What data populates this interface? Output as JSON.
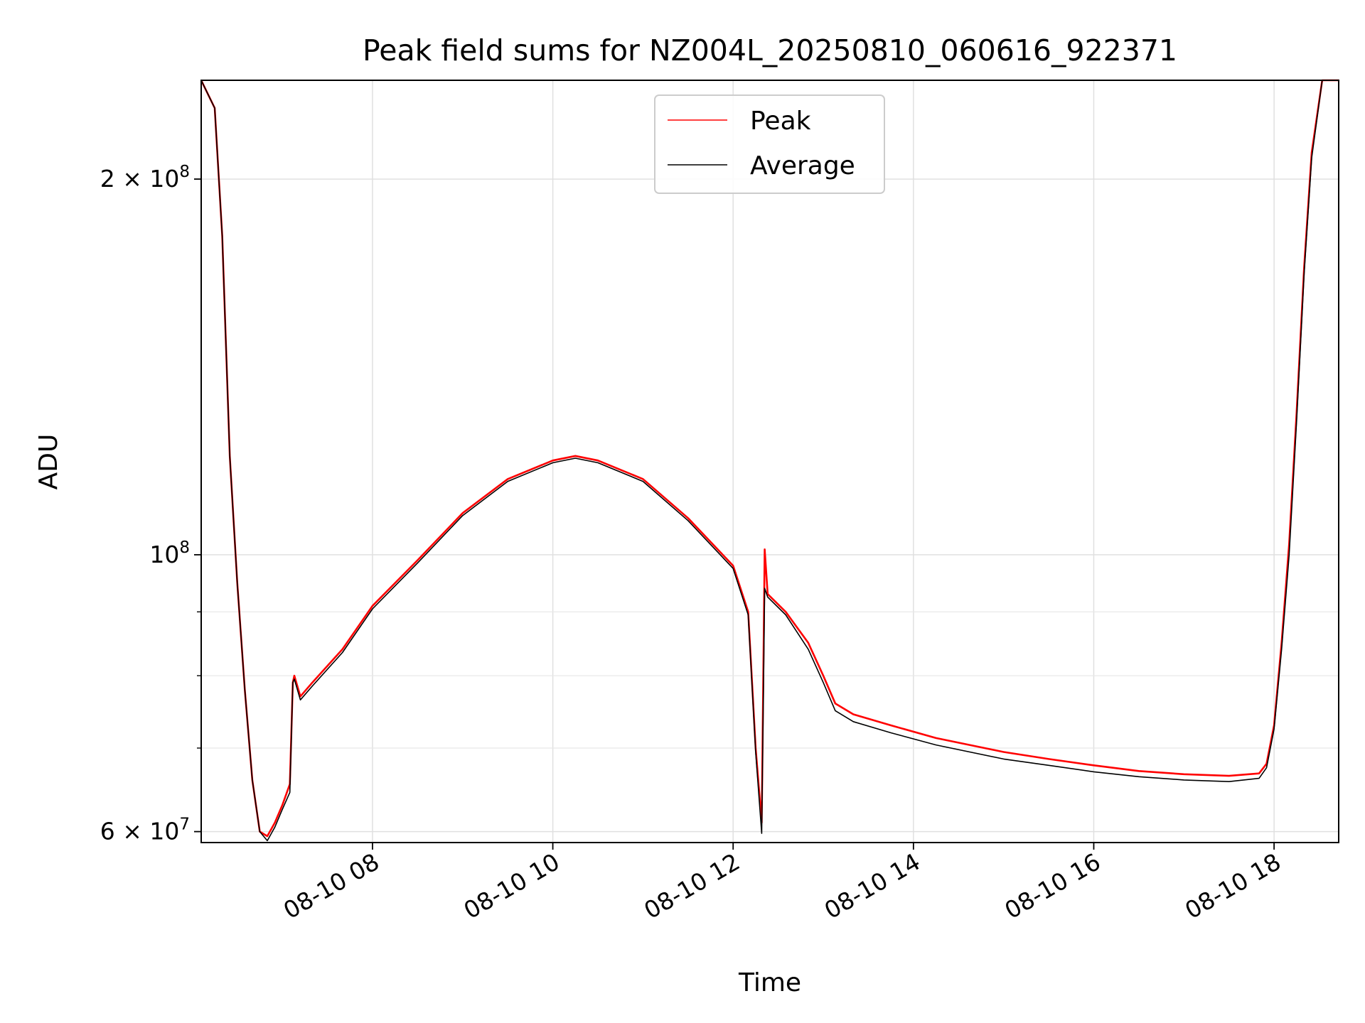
{
  "chart_data": {
    "type": "line",
    "title": "Peak field sums for NZ004L_20250810_060616_922371",
    "xlabel": "Time",
    "ylabel": "ADU",
    "yscale": "log",
    "xlim": [
      "2025-08-10 06:06",
      "2025-08-10 18:43"
    ],
    "ylim": [
      58800000,
      240000000
    ],
    "grid": true,
    "legend_position": "upper center",
    "x_ticks": [
      "08-10 08",
      "08-10 10",
      "08-10 12",
      "08-10 14",
      "08-10 16",
      "08-10 18"
    ],
    "x_tick_times": [
      "2025-08-10 08:00",
      "2025-08-10 10:00",
      "2025-08-10 12:00",
      "2025-08-10 14:00",
      "2025-08-10 16:00",
      "2025-08-10 18:00"
    ],
    "y_ticks": [
      {
        "value": 60000000,
        "mant": "6",
        "exp": "7",
        "text": "6 × 10^7"
      },
      {
        "value": 100000000,
        "mant": "",
        "exp": "8",
        "text": "10^8"
      },
      {
        "value": 200000000,
        "mant": "2",
        "exp": "8",
        "text": "2 × 10^8"
      }
    ],
    "y_minor_ticks": [
      70000000,
      80000000,
      90000000
    ],
    "series": [
      {
        "name": "Peak",
        "color": "#ff0000",
        "points": [
          [
            "2025-08-10 06:06",
            240000000
          ],
          [
            "2025-08-10 06:15",
            228000000
          ],
          [
            "2025-08-10 06:20",
            180000000
          ],
          [
            "2025-08-10 06:25",
            120000000
          ],
          [
            "2025-08-10 06:30",
            95000000
          ],
          [
            "2025-08-10 06:35",
            78000000
          ],
          [
            "2025-08-10 06:40",
            66000000
          ],
          [
            "2025-08-10 06:45",
            60000000
          ],
          [
            "2025-08-10 06:50",
            59500000
          ],
          [
            "2025-08-10 06:55",
            61000000
          ],
          [
            "2025-08-10 07:00",
            63000000
          ],
          [
            "2025-08-10 07:05",
            65500000
          ],
          [
            "2025-08-10 07:07",
            79000000
          ],
          [
            "2025-08-10 07:08",
            80000000
          ],
          [
            "2025-08-10 07:12",
            77000000
          ],
          [
            "2025-08-10 07:20",
            79000000
          ],
          [
            "2025-08-10 07:40",
            84000000
          ],
          [
            "2025-08-10 08:00",
            91000000
          ],
          [
            "2025-08-10 08:30",
            99000000
          ],
          [
            "2025-08-10 09:00",
            108000000
          ],
          [
            "2025-08-10 09:30",
            115000000
          ],
          [
            "2025-08-10 10:00",
            119000000
          ],
          [
            "2025-08-10 10:15",
            120000000
          ],
          [
            "2025-08-10 10:30",
            119000000
          ],
          [
            "2025-08-10 11:00",
            115000000
          ],
          [
            "2025-08-10 11:30",
            107000000
          ],
          [
            "2025-08-10 12:00",
            98000000
          ],
          [
            "2025-08-10 12:10",
            90000000
          ],
          [
            "2025-08-10 12:15",
            70000000
          ],
          [
            "2025-08-10 12:19",
            61000000
          ],
          [
            "2025-08-10 12:21",
            101000000
          ],
          [
            "2025-08-10 12:23",
            93000000
          ],
          [
            "2025-08-10 12:35",
            90000000
          ],
          [
            "2025-08-10 12:50",
            85000000
          ],
          [
            "2025-08-10 13:00",
            80000000
          ],
          [
            "2025-08-10 13:08",
            76000000
          ],
          [
            "2025-08-10 13:20",
            74500000
          ],
          [
            "2025-08-10 13:45",
            73000000
          ],
          [
            "2025-08-10 14:15",
            71300000
          ],
          [
            "2025-08-10 15:00",
            69500000
          ],
          [
            "2025-08-10 15:30",
            68600000
          ],
          [
            "2025-08-10 16:00",
            67800000
          ],
          [
            "2025-08-10 16:30",
            67100000
          ],
          [
            "2025-08-10 17:00",
            66700000
          ],
          [
            "2025-08-10 17:30",
            66500000
          ],
          [
            "2025-08-10 17:50",
            66800000
          ],
          [
            "2025-08-10 17:55",
            68000000
          ],
          [
            "2025-08-10 18:00",
            73000000
          ],
          [
            "2025-08-10 18:05",
            85000000
          ],
          [
            "2025-08-10 18:10",
            102000000
          ],
          [
            "2025-08-10 18:15",
            130000000
          ],
          [
            "2025-08-10 18:20",
            170000000
          ],
          [
            "2025-08-10 18:25",
            210000000
          ],
          [
            "2025-08-10 18:32",
            240000000
          ],
          [
            "2025-08-10 18:43",
            240000000
          ]
        ]
      },
      {
        "name": "Average",
        "color": "#000000",
        "points": [
          [
            "2025-08-10 06:06",
            240000000
          ],
          [
            "2025-08-10 06:15",
            228000000
          ],
          [
            "2025-08-10 06:20",
            180000000
          ],
          [
            "2025-08-10 06:25",
            120000000
          ],
          [
            "2025-08-10 06:30",
            95000000
          ],
          [
            "2025-08-10 06:35",
            78000000
          ],
          [
            "2025-08-10 06:40",
            66000000
          ],
          [
            "2025-08-10 06:45",
            60000000
          ],
          [
            "2025-08-10 06:50",
            59000000
          ],
          [
            "2025-08-10 06:55",
            60500000
          ],
          [
            "2025-08-10 07:00",
            62500000
          ],
          [
            "2025-08-10 07:05",
            64500000
          ],
          [
            "2025-08-10 07:07",
            79000000
          ],
          [
            "2025-08-10 07:08",
            79500000
          ],
          [
            "2025-08-10 07:12",
            76500000
          ],
          [
            "2025-08-10 07:20",
            78500000
          ],
          [
            "2025-08-10 07:40",
            83500000
          ],
          [
            "2025-08-10 08:00",
            90500000
          ],
          [
            "2025-08-10 08:30",
            98500000
          ],
          [
            "2025-08-10 09:00",
            107500000
          ],
          [
            "2025-08-10 09:30",
            114500000
          ],
          [
            "2025-08-10 10:00",
            118500000
          ],
          [
            "2025-08-10 10:15",
            119500000
          ],
          [
            "2025-08-10 10:30",
            118500000
          ],
          [
            "2025-08-10 11:00",
            114500000
          ],
          [
            "2025-08-10 11:30",
            106500000
          ],
          [
            "2025-08-10 12:00",
            97500000
          ],
          [
            "2025-08-10 12:10",
            89500000
          ],
          [
            "2025-08-10 12:15",
            69500000
          ],
          [
            "2025-08-10 12:19",
            59800000
          ],
          [
            "2025-08-10 12:21",
            94000000
          ],
          [
            "2025-08-10 12:23",
            92500000
          ],
          [
            "2025-08-10 12:35",
            89500000
          ],
          [
            "2025-08-10 12:50",
            84000000
          ],
          [
            "2025-08-10 13:00",
            79000000
          ],
          [
            "2025-08-10 13:08",
            75000000
          ],
          [
            "2025-08-10 13:20",
            73500000
          ],
          [
            "2025-08-10 13:45",
            72000000
          ],
          [
            "2025-08-10 14:15",
            70400000
          ],
          [
            "2025-08-10 15:00",
            68600000
          ],
          [
            "2025-08-10 15:30",
            67800000
          ],
          [
            "2025-08-10 16:00",
            67000000
          ],
          [
            "2025-08-10 16:30",
            66400000
          ],
          [
            "2025-08-10 17:00",
            66000000
          ],
          [
            "2025-08-10 17:30",
            65800000
          ],
          [
            "2025-08-10 17:50",
            66200000
          ],
          [
            "2025-08-10 17:55",
            67500000
          ],
          [
            "2025-08-10 18:00",
            72500000
          ],
          [
            "2025-08-10 18:05",
            84000000
          ],
          [
            "2025-08-10 18:10",
            100000000
          ],
          [
            "2025-08-10 18:15",
            128000000
          ],
          [
            "2025-08-10 18:20",
            168000000
          ],
          [
            "2025-08-10 18:25",
            208000000
          ],
          [
            "2025-08-10 18:32",
            240000000
          ],
          [
            "2025-08-10 18:43",
            240000000
          ]
        ]
      }
    ]
  }
}
